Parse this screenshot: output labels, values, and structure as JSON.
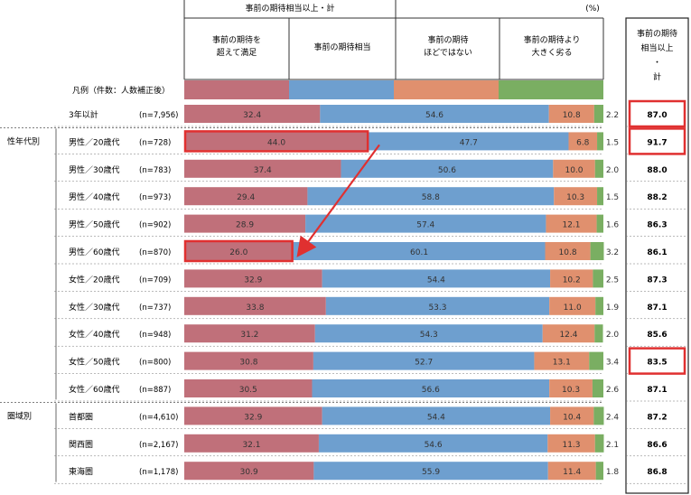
{
  "header": {
    "group_label": "事前の期待相当以上・計",
    "unit": "(%)",
    "columns": [
      "事前の期待を\n超えて満足",
      "事前の期待相当",
      "事前の期待\nほどではない",
      "事前の期待より\n大きく劣る"
    ],
    "total_header": "事前の期待\n相当以上\n・\n計"
  },
  "legend_row_label": "凡例（件数：人数補正後）",
  "chart_data": {
    "type": "bar",
    "stacked": true,
    "orientation": "horizontal",
    "series": [
      {
        "name": "事前の期待を超えて満足",
        "color": "#c0707a"
      },
      {
        "name": "事前の期待相当",
        "color": "#6e9fcf"
      },
      {
        "name": "事前の期待ほどではない",
        "color": "#e0906e"
      },
      {
        "name": "事前の期待より大きく劣る",
        "color": "#7aae62"
      }
    ],
    "groups": [
      {
        "label": "",
        "rows": [
          {
            "label": "3年以計",
            "n": "(n=7,956)",
            "values": [
              32.4,
              54.6,
              10.8,
              2.2
            ],
            "total": "87.0"
          }
        ]
      },
      {
        "label": "性年代別",
        "rows": [
          {
            "label": "男性／20歳代",
            "n": "(n=728)",
            "values": [
              44.0,
              47.7,
              6.8,
              1.5
            ],
            "total": "91.7"
          },
          {
            "label": "男性／30歳代",
            "n": "(n=783)",
            "values": [
              37.4,
              50.6,
              10.0,
              2.0
            ],
            "total": "88.0"
          },
          {
            "label": "男性／40歳代",
            "n": "(n=973)",
            "values": [
              29.4,
              58.8,
              10.3,
              1.5
            ],
            "total": "88.2"
          },
          {
            "label": "男性／50歳代",
            "n": "(n=902)",
            "values": [
              28.9,
              57.4,
              12.1,
              1.6
            ],
            "total": "86.3"
          },
          {
            "label": "男性／60歳代",
            "n": "(n=870)",
            "values": [
              26.0,
              60.1,
              10.8,
              3.2
            ],
            "total": "86.1"
          },
          {
            "label": "女性／20歳代",
            "n": "(n=709)",
            "values": [
              32.9,
              54.4,
              10.2,
              2.5
            ],
            "total": "87.3"
          },
          {
            "label": "女性／30歳代",
            "n": "(n=737)",
            "values": [
              33.8,
              53.3,
              11.0,
              1.9
            ],
            "total": "87.1"
          },
          {
            "label": "女性／40歳代",
            "n": "(n=948)",
            "values": [
              31.2,
              54.3,
              12.4,
              2.0
            ],
            "total": "85.6"
          },
          {
            "label": "女性／50歳代",
            "n": "(n=800)",
            "values": [
              30.8,
              52.7,
              13.1,
              3.4
            ],
            "total": "83.5"
          },
          {
            "label": "女性／60歳代",
            "n": "(n=887)",
            "values": [
              30.5,
              56.6,
              10.3,
              2.6
            ],
            "total": "87.1"
          }
        ]
      },
      {
        "label": "圏域別",
        "rows": [
          {
            "label": "首都圏",
            "n": "(n=4,610)",
            "values": [
              32.9,
              54.4,
              10.4,
              2.4
            ],
            "total": "87.2"
          },
          {
            "label": "関西圏",
            "n": "(n=2,167)",
            "values": [
              32.1,
              54.6,
              11.3,
              2.1
            ],
            "total": "86.6"
          },
          {
            "label": "東海圏",
            "n": "(n=1,178)",
            "values": [
              30.9,
              55.9,
              11.4,
              1.8
            ],
            "total": "86.8"
          }
        ]
      }
    ],
    "xlim": [
      0,
      100
    ],
    "highlighted_totals": [
      "3年以計",
      "男性／20歳代",
      "女性／50歳代"
    ],
    "highlighted_segments": [
      {
        "row": "男性／20歳代",
        "series": "事前の期待を超えて満足"
      },
      {
        "row": "男性／60歳代",
        "series": "事前の期待を超えて満足"
      }
    ],
    "arrow": {
      "from": "男性／20歳代",
      "to": "男性／60歳代",
      "color": "#e03030"
    }
  }
}
